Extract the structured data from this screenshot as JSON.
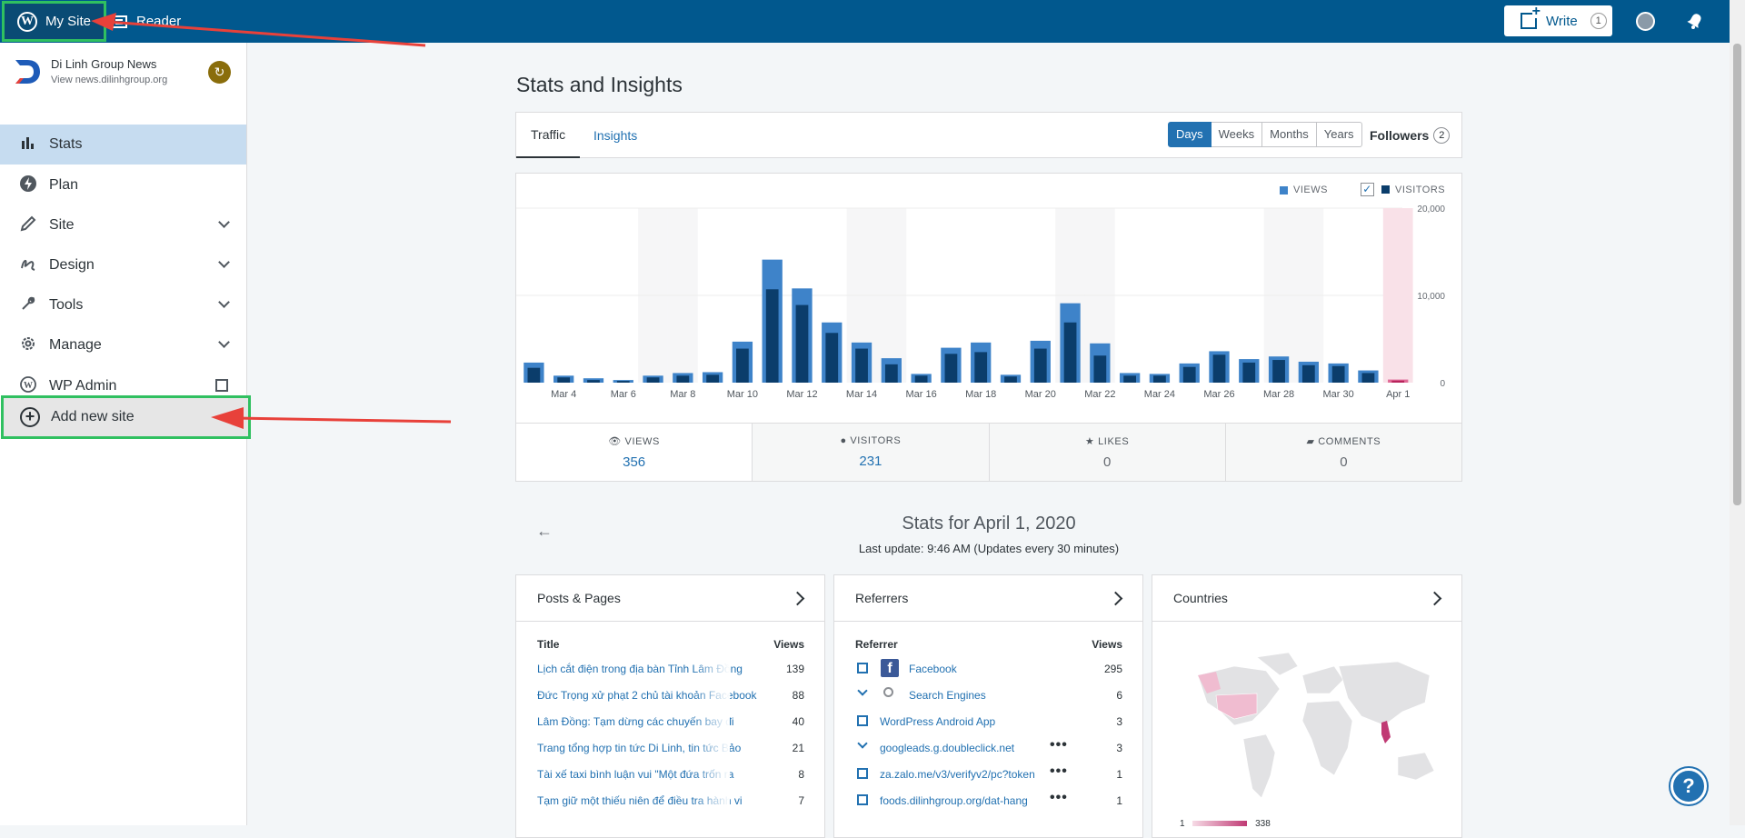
{
  "masterbar": {
    "my_site": "My Site",
    "reader": "Reader",
    "write": "Write",
    "write_badge": "1",
    "icons": [
      "wordpress-icon",
      "reader-icon",
      "write-icon",
      "avatar-icon",
      "notifications-icon"
    ]
  },
  "site": {
    "name": "Di Linh Group News",
    "url": "View news.dilinhgroup.org"
  },
  "nav": {
    "stats": "Stats",
    "plan": "Plan",
    "site": "Site",
    "design": "Design",
    "tools": "Tools",
    "manage": "Manage",
    "wp_admin": "WP Admin",
    "add_new_site": "Add new site"
  },
  "page": {
    "title": "Stats and Insights",
    "tabs": [
      "Traffic",
      "Insights"
    ],
    "periods": [
      "Days",
      "Weeks",
      "Months",
      "Years"
    ],
    "selected_period": "Days",
    "followers_label": "Followers",
    "followers_count": "2"
  },
  "chart_data": {
    "type": "bar",
    "legend": [
      "VIEWS",
      "VISITORS"
    ],
    "categories": [
      "Mar 3",
      "Mar 4",
      "Mar 5",
      "Mar 6",
      "Mar 7",
      "Mar 8",
      "Mar 9",
      "Mar 10",
      "Mar 11",
      "Mar 12",
      "Mar 13",
      "Mar 14",
      "Mar 15",
      "Mar 16",
      "Mar 17",
      "Mar 18",
      "Mar 19",
      "Mar 20",
      "Mar 21",
      "Mar 22",
      "Mar 23",
      "Mar 24",
      "Mar 25",
      "Mar 26",
      "Mar 27",
      "Mar 28",
      "Mar 29",
      "Mar 30",
      "Mar 31",
      "Apr 1"
    ],
    "tick_labels": [
      "Mar 4",
      "Mar 6",
      "Mar 8",
      "Mar 10",
      "Mar 12",
      "Mar 14",
      "Mar 16",
      "Mar 18",
      "Mar 20",
      "Mar 22",
      "Mar 24",
      "Mar 26",
      "Mar 28",
      "Mar 30",
      "Apr 1"
    ],
    "series": [
      {
        "name": "VIEWS",
        "values": [
          2300,
          800,
          500,
          300,
          800,
          1100,
          1200,
          4700,
          14100,
          10800,
          6900,
          4600,
          2800,
          1000,
          4000,
          4600,
          900,
          4800,
          9100,
          4500,
          1100,
          1000,
          2200,
          3600,
          2700,
          3000,
          2400,
          2200,
          1400,
          356
        ]
      },
      {
        "name": "VISITORS",
        "values": [
          1700,
          600,
          300,
          200,
          600,
          800,
          900,
          3900,
          10700,
          8900,
          5700,
          3900,
          2100,
          800,
          3300,
          3500,
          700,
          3900,
          6900,
          3100,
          800,
          800,
          1800,
          3200,
          2300,
          2600,
          2000,
          1900,
          1100,
          231
        ]
      }
    ],
    "ylim": [
      0,
      20000
    ],
    "yticks": [
      "20,000",
      "10,000",
      "0"
    ],
    "colors": {
      "views": "#3e83c9",
      "visitors": "#0b3d6b",
      "selected": "#e06a96",
      "selected_bg": "#f9e1e8"
    }
  },
  "summary": {
    "views_label": "VIEWS",
    "views": "356",
    "visitors_label": "VISITORS",
    "visitors": "231",
    "likes_label": "LIKES",
    "likes": "0",
    "comments_label": "COMMENTS",
    "comments": "0"
  },
  "stats_for": "Stats for April 1, 2020",
  "last_update": "Last update: 9:46 AM (Updates every 30 minutes)",
  "posts": {
    "title": "Posts & Pages",
    "col_title": "Title",
    "col_views": "Views",
    "rows": [
      {
        "t": "Lịch cắt điện trong địa bàn Tỉnh Lâm Đồng",
        "v": "139"
      },
      {
        "t": "Đức Trọng xử phạt 2 chủ tài khoản Facebook",
        "v": "88"
      },
      {
        "t": "Lâm Đồng: Tạm dừng các chuyến bay đi",
        "v": "40"
      },
      {
        "t": "Trang tổng hợp tin tức Di Linh, tin tức Bảo",
        "v": "21"
      },
      {
        "t": "Tài xế taxi bình luận vui \"Một đứa trốn ra",
        "v": "8"
      },
      {
        "t": "Tạm giữ một thiếu niên để điều tra hành vi",
        "v": "7"
      }
    ]
  },
  "referrers": {
    "title": "Referrers",
    "col_ref": "Referrer",
    "col_views": "Views",
    "rows": [
      {
        "t": "Facebook",
        "v": "295"
      },
      {
        "t": "Search Engines",
        "v": "6"
      },
      {
        "t": "WordPress Android App",
        "v": "3"
      },
      {
        "t": "googleads.g.doubleclick.net",
        "v": "3"
      },
      {
        "t": "za.zalo.me/v3/verifyv2/pc?token",
        "v": "1"
      },
      {
        "t": "foods.dilinhgroup.org/dat-hang",
        "v": "1"
      }
    ]
  },
  "countries": {
    "title": "Countries",
    "legend_min": "1",
    "legend_max": "338"
  }
}
